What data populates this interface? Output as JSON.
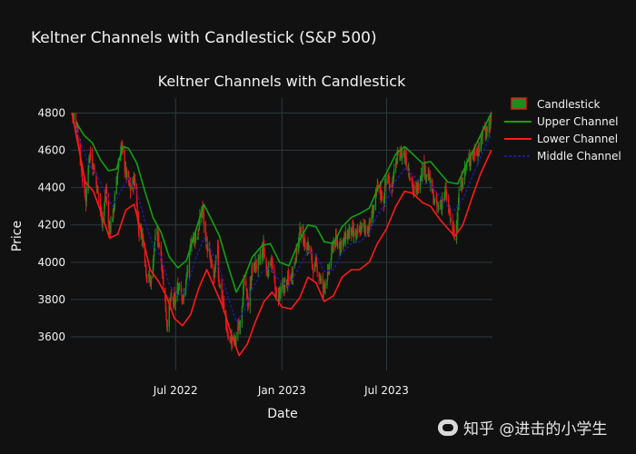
{
  "page": {
    "title": "Keltner Channels with Candlestick (S&P 500)"
  },
  "watermark": {
    "text": "知乎 @进击的小学生"
  },
  "colors": {
    "background": "#111111",
    "grid": "#2c3a3f",
    "candle": "#1f8c1f",
    "candle_down": "#e8161b",
    "upper_channel": "#12a112",
    "lower_channel": "#ff1a1a",
    "middle_channel": "#1a1aa0"
  },
  "chart_data": {
    "type": "candlestick",
    "title": "Keltner Channels with Candlestick",
    "xlabel": "Date",
    "ylabel": "Price",
    "x_range": [
      "2022-01-01",
      "2023-12-31"
    ],
    "ylim": [
      3420,
      4880
    ],
    "x_ticks": [
      {
        "date": "2022-07-01",
        "label": "Jul 2022"
      },
      {
        "date": "2023-01-01",
        "label": "Jan 2023"
      },
      {
        "date": "2023-07-01",
        "label": "Jul 2023"
      }
    ],
    "y_ticks": [
      3600,
      3800,
      4000,
      4200,
      4400,
      4600,
      4800
    ],
    "grid": true,
    "legend_position": "top-right",
    "legend": [
      "Candlestick",
      "Upper Channel",
      "Lower Channel",
      "Middle Channel"
    ],
    "close_path": [
      [
        "2022-01-03",
        4796
      ],
      [
        "2022-01-12",
        4720
      ],
      [
        "2022-01-20",
        4480
      ],
      [
        "2022-01-27",
        4330
      ],
      [
        "2022-02-02",
        4590
      ],
      [
        "2022-02-10",
        4500
      ],
      [
        "2022-02-18",
        4350
      ],
      [
        "2022-02-24",
        4230
      ],
      [
        "2022-03-03",
        4380
      ],
      [
        "2022-03-08",
        4170
      ],
      [
        "2022-03-15",
        4260
      ],
      [
        "2022-03-24",
        4520
      ],
      [
        "2022-03-29",
        4630
      ],
      [
        "2022-04-06",
        4480
      ],
      [
        "2022-04-14",
        4390
      ],
      [
        "2022-04-21",
        4450
      ],
      [
        "2022-04-28",
        4180
      ],
      [
        "2022-05-05",
        4150
      ],
      [
        "2022-05-12",
        3930
      ],
      [
        "2022-05-20",
        3900
      ],
      [
        "2022-05-27",
        4150
      ],
      [
        "2022-06-03",
        4110
      ],
      [
        "2022-06-10",
        3900
      ],
      [
        "2022-06-16",
        3670
      ],
      [
        "2022-06-23",
        3800
      ],
      [
        "2022-06-30",
        3790
      ],
      [
        "2022-07-08",
        3900
      ],
      [
        "2022-07-14",
        3790
      ],
      [
        "2022-07-22",
        3960
      ],
      [
        "2022-07-29",
        4130
      ],
      [
        "2022-08-08",
        4140
      ],
      [
        "2022-08-16",
        4300
      ],
      [
        "2022-08-22",
        4130
      ],
      [
        "2022-08-26",
        4060
      ],
      [
        "2022-09-06",
        3910
      ],
      [
        "2022-09-12",
        4110
      ],
      [
        "2022-09-13",
        3930
      ],
      [
        "2022-09-22",
        3760
      ],
      [
        "2022-09-30",
        3590
      ],
      [
        "2022-10-12",
        3580
      ],
      [
        "2022-10-20",
        3670
      ],
      [
        "2022-10-28",
        3900
      ],
      [
        "2022-11-04",
        3770
      ],
      [
        "2022-11-10",
        3960
      ],
      [
        "2022-11-22",
        4000
      ],
      [
        "2022-11-30",
        4080
      ],
      [
        "2022-12-06",
        3940
      ],
      [
        "2022-12-13",
        4020
      ],
      [
        "2022-12-22",
        3820
      ],
      [
        "2022-12-30",
        3840
      ],
      [
        "2023-01-09",
        3890
      ],
      [
        "2023-01-18",
        3930
      ],
      [
        "2023-01-27",
        4070
      ],
      [
        "2023-02-02",
        4180
      ],
      [
        "2023-02-10",
        4090
      ],
      [
        "2023-02-17",
        4080
      ],
      [
        "2023-02-24",
        3970
      ],
      [
        "2023-03-02",
        3980
      ],
      [
        "2023-03-13",
        3860
      ],
      [
        "2023-03-22",
        3940
      ],
      [
        "2023-03-31",
        4110
      ],
      [
        "2023-04-12",
        4100
      ],
      [
        "2023-04-21",
        4130
      ],
      [
        "2023-04-28",
        4170
      ],
      [
        "2023-05-10",
        4140
      ],
      [
        "2023-05-19",
        4190
      ],
      [
        "2023-05-31",
        4180
      ],
      [
        "2023-06-09",
        4300
      ],
      [
        "2023-06-16",
        4410
      ],
      [
        "2023-06-26",
        4330
      ],
      [
        "2023-06-30",
        4450
      ],
      [
        "2023-07-10",
        4410
      ],
      [
        "2023-07-19",
        4560
      ],
      [
        "2023-07-31",
        4590
      ],
      [
        "2023-08-08",
        4500
      ],
      [
        "2023-08-17",
        4370
      ],
      [
        "2023-08-25",
        4410
      ],
      [
        "2023-09-01",
        4510
      ],
      [
        "2023-09-12",
        4460
      ],
      [
        "2023-09-21",
        4330
      ],
      [
        "2023-09-29",
        4290
      ],
      [
        "2023-10-11",
        4370
      ],
      [
        "2023-10-20",
        4220
      ],
      [
        "2023-10-27",
        4120
      ],
      [
        "2023-11-03",
        4360
      ],
      [
        "2023-11-14",
        4500
      ],
      [
        "2023-11-22",
        4560
      ],
      [
        "2023-12-01",
        4590
      ],
      [
        "2023-12-11",
        4620
      ],
      [
        "2023-12-14",
        4720
      ],
      [
        "2023-12-20",
        4700
      ],
      [
        "2023-12-29",
        4770
      ]
    ],
    "upper_channel": [
      [
        "2022-01-10",
        4750
      ],
      [
        "2022-01-24",
        4680
      ],
      [
        "2022-02-07",
        4640
      ],
      [
        "2022-02-21",
        4550
      ],
      [
        "2022-03-07",
        4490
      ],
      [
        "2022-03-21",
        4500
      ],
      [
        "2022-04-01",
        4620
      ],
      [
        "2022-04-11",
        4610
      ],
      [
        "2022-04-25",
        4530
      ],
      [
        "2022-05-09",
        4380
      ],
      [
        "2022-05-23",
        4240
      ],
      [
        "2022-06-06",
        4160
      ],
      [
        "2022-06-20",
        4030
      ],
      [
        "2022-07-05",
        3970
      ],
      [
        "2022-07-20",
        4010
      ],
      [
        "2022-08-03",
        4150
      ],
      [
        "2022-08-19",
        4310
      ],
      [
        "2022-09-01",
        4230
      ],
      [
        "2022-09-15",
        4140
      ],
      [
        "2022-09-30",
        3980
      ],
      [
        "2022-10-14",
        3840
      ],
      [
        "2022-10-28",
        3920
      ],
      [
        "2022-11-11",
        4030
      ],
      [
        "2022-11-28",
        4090
      ],
      [
        "2022-12-12",
        4100
      ],
      [
        "2022-12-28",
        4000
      ],
      [
        "2023-01-13",
        3980
      ],
      [
        "2023-01-30",
        4110
      ],
      [
        "2023-02-15",
        4200
      ],
      [
        "2023-03-01",
        4190
      ],
      [
        "2023-03-15",
        4110
      ],
      [
        "2023-03-31",
        4100
      ],
      [
        "2023-04-15",
        4190
      ],
      [
        "2023-05-01",
        4240
      ],
      [
        "2023-05-15",
        4260
      ],
      [
        "2023-06-01",
        4290
      ],
      [
        "2023-06-15",
        4390
      ],
      [
        "2023-07-01",
        4480
      ],
      [
        "2023-07-17",
        4580
      ],
      [
        "2023-08-01",
        4620
      ],
      [
        "2023-08-15",
        4580
      ],
      [
        "2023-09-01",
        4530
      ],
      [
        "2023-09-15",
        4540
      ],
      [
        "2023-10-01",
        4480
      ],
      [
        "2023-10-15",
        4430
      ],
      [
        "2023-11-01",
        4420
      ],
      [
        "2023-11-15",
        4520
      ],
      [
        "2023-12-01",
        4620
      ],
      [
        "2023-12-15",
        4710
      ],
      [
        "2023-12-29",
        4800
      ]
    ],
    "lower_channel": [
      [
        "2022-01-03",
        4800
      ],
      [
        "2022-01-14",
        4620
      ],
      [
        "2022-01-26",
        4430
      ],
      [
        "2022-02-09",
        4380
      ],
      [
        "2022-02-23",
        4260
      ],
      [
        "2022-03-09",
        4130
      ],
      [
        "2022-03-23",
        4150
      ],
      [
        "2022-04-06",
        4280
      ],
      [
        "2022-04-20",
        4310
      ],
      [
        "2022-05-04",
        4150
      ],
      [
        "2022-05-18",
        3960
      ],
      [
        "2022-06-01",
        3900
      ],
      [
        "2022-06-15",
        3820
      ],
      [
        "2022-06-29",
        3700
      ],
      [
        "2022-07-13",
        3660
      ],
      [
        "2022-07-27",
        3720
      ],
      [
        "2022-08-10",
        3860
      ],
      [
        "2022-08-24",
        3960
      ],
      [
        "2022-09-07",
        3860
      ],
      [
        "2022-09-21",
        3760
      ],
      [
        "2022-10-05",
        3620
      ],
      [
        "2022-10-19",
        3500
      ],
      [
        "2022-11-02",
        3560
      ],
      [
        "2022-11-16",
        3680
      ],
      [
        "2022-12-01",
        3790
      ],
      [
        "2022-12-15",
        3840
      ],
      [
        "2023-01-01",
        3760
      ],
      [
        "2023-01-17",
        3750
      ],
      [
        "2023-02-01",
        3810
      ],
      [
        "2023-02-15",
        3920
      ],
      [
        "2023-03-01",
        3890
      ],
      [
        "2023-03-15",
        3790
      ],
      [
        "2023-03-31",
        3820
      ],
      [
        "2023-04-15",
        3920
      ],
      [
        "2023-05-01",
        3960
      ],
      [
        "2023-05-15",
        3960
      ],
      [
        "2023-06-01",
        4000
      ],
      [
        "2023-06-15",
        4100
      ],
      [
        "2023-07-01",
        4180
      ],
      [
        "2023-07-17",
        4300
      ],
      [
        "2023-08-01",
        4380
      ],
      [
        "2023-08-15",
        4370
      ],
      [
        "2023-09-01",
        4320
      ],
      [
        "2023-09-15",
        4300
      ],
      [
        "2023-10-01",
        4230
      ],
      [
        "2023-10-15",
        4180
      ],
      [
        "2023-10-27",
        4140
      ],
      [
        "2023-11-10",
        4200
      ],
      [
        "2023-11-25",
        4340
      ],
      [
        "2023-12-10",
        4470
      ],
      [
        "2023-12-29",
        4600
      ]
    ],
    "middle_channel": [
      [
        "2022-01-03",
        4790
      ],
      [
        "2022-01-17",
        4650
      ],
      [
        "2022-01-31",
        4530
      ],
      [
        "2022-02-14",
        4470
      ],
      [
        "2022-02-28",
        4380
      ],
      [
        "2022-03-14",
        4300
      ],
      [
        "2022-03-28",
        4380
      ],
      [
        "2022-04-11",
        4450
      ],
      [
        "2022-04-25",
        4380
      ],
      [
        "2022-05-09",
        4220
      ],
      [
        "2022-05-23",
        4090
      ],
      [
        "2022-06-06",
        4030
      ],
      [
        "2022-06-20",
        3880
      ],
      [
        "2022-07-05",
        3820
      ],
      [
        "2022-07-20",
        3850
      ],
      [
        "2022-08-03",
        4000
      ],
      [
        "2022-08-19",
        4130
      ],
      [
        "2022-09-01",
        4060
      ],
      [
        "2022-09-15",
        3970
      ],
      [
        "2022-09-30",
        3810
      ],
      [
        "2022-10-14",
        3680
      ],
      [
        "2022-10-28",
        3740
      ],
      [
        "2022-11-11",
        3860
      ],
      [
        "2022-11-28",
        3950
      ],
      [
        "2022-12-12",
        3970
      ],
      [
        "2022-12-28",
        3900
      ],
      [
        "2023-01-13",
        3870
      ],
      [
        "2023-01-30",
        3970
      ],
      [
        "2023-02-15",
        4060
      ],
      [
        "2023-03-01",
        4040
      ],
      [
        "2023-03-15",
        3950
      ],
      [
        "2023-03-31",
        3960
      ],
      [
        "2023-04-15",
        4050
      ],
      [
        "2023-05-01",
        4100
      ],
      [
        "2023-05-15",
        4110
      ],
      [
        "2023-06-01",
        4150
      ],
      [
        "2023-06-15",
        4250
      ],
      [
        "2023-07-01",
        4330
      ],
      [
        "2023-07-17",
        4440
      ],
      [
        "2023-08-01",
        4500
      ],
      [
        "2023-08-15",
        4470
      ],
      [
        "2023-09-01",
        4420
      ],
      [
        "2023-09-15",
        4420
      ],
      [
        "2023-10-01",
        4350
      ],
      [
        "2023-10-15",
        4300
      ],
      [
        "2023-10-27",
        4280
      ],
      [
        "2023-11-10",
        4340
      ],
      [
        "2023-11-25",
        4450
      ],
      [
        "2023-12-10",
        4560
      ],
      [
        "2023-12-29",
        4690
      ]
    ]
  }
}
